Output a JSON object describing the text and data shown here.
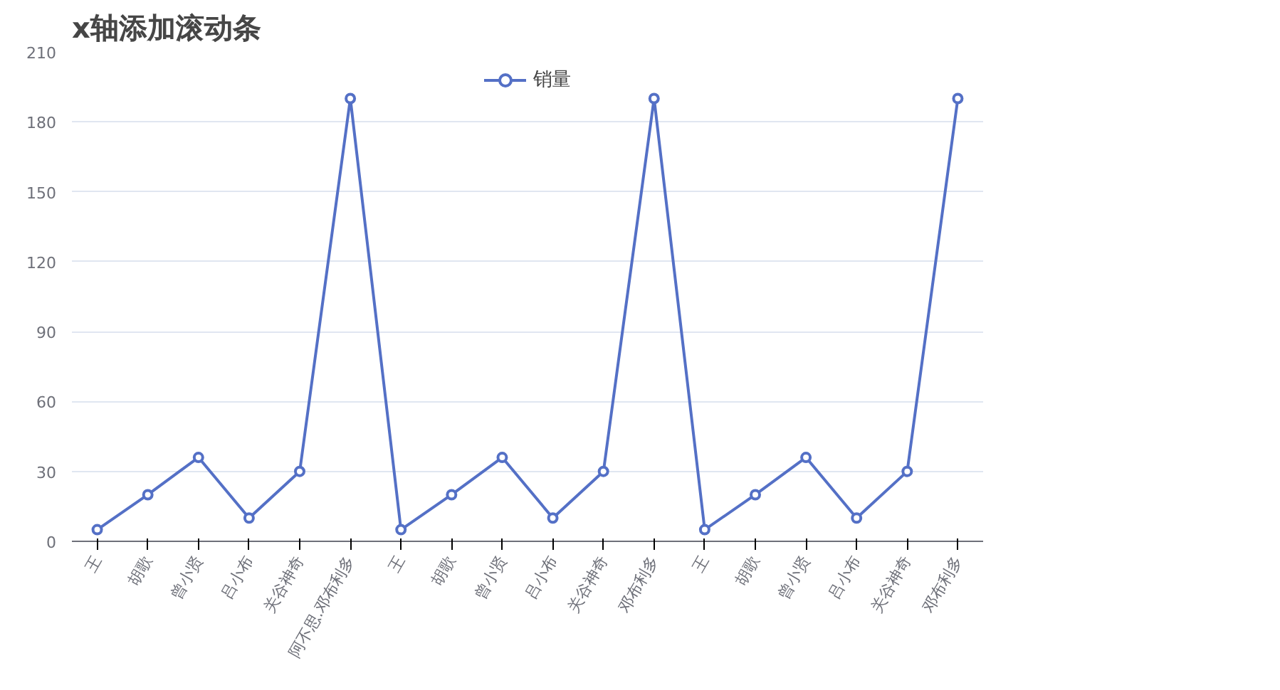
{
  "chart_data": {
    "type": "line",
    "title": "x轴添加滚动条",
    "categories": [
      "王",
      "胡歌",
      "曾小贤",
      "吕小布",
      "关谷神奇",
      "阿不思.邓布利多",
      "王",
      "胡歌",
      "曾小贤",
      "吕小布",
      "关谷神奇",
      "邓布利多",
      "王",
      "胡歌",
      "曾小贤",
      "吕小布",
      "关谷神奇",
      "邓布利多"
    ],
    "series": [
      {
        "name": "销量",
        "color": "#5470c6",
        "values": [
          5,
          20,
          36,
          10,
          30,
          190,
          5,
          20,
          36,
          10,
          30,
          190,
          5,
          20,
          36,
          10,
          30,
          190
        ]
      }
    ],
    "ylim": [
      0,
      210
    ],
    "yticks": [
      0,
      30,
      60,
      90,
      120,
      150,
      180,
      210
    ],
    "grid": "y",
    "legend": "top",
    "marker": "circle",
    "line_style": "solid"
  }
}
